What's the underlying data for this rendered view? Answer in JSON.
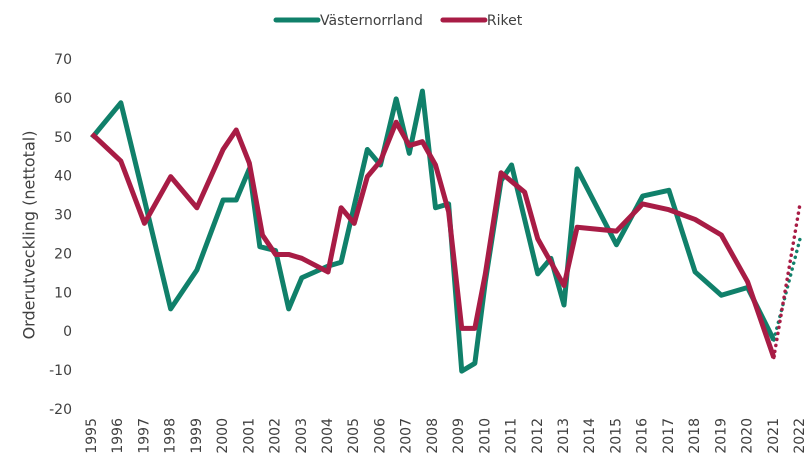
{
  "chart_data": {
    "type": "line",
    "y_axis_label": "Orderutveckling (nettotal)",
    "xlim": [
      1995,
      2022
    ],
    "xticks": [
      1995,
      1996,
      1997,
      1998,
      1999,
      2000,
      2001,
      2002,
      2003,
      2004,
      2005,
      2006,
      2007,
      2008,
      2009,
      2010,
      2011,
      2012,
      2013,
      2014,
      2015,
      2016,
      2017,
      2018,
      2019,
      2020,
      2021,
      2022
    ],
    "ylim": [
      -20,
      70
    ],
    "yticks": [
      -20,
      -10,
      0,
      10,
      20,
      30,
      40,
      50,
      60,
      70
    ],
    "grid": false,
    "legend": "top",
    "series": [
      {
        "name": "Västernorrland",
        "color": "#10806a",
        "x": [
          1995,
          1996.1,
          1997,
          1998,
          1999,
          2000,
          2000.5,
          2001,
          2001.4,
          2002,
          2002.5,
          2003,
          2004,
          2004.5,
          2005.5,
          2006,
          2006.6,
          2007.1,
          2007.6,
          2008.1,
          2008.6,
          2009.1,
          2009.6,
          2010,
          2010.6,
          2011,
          2012,
          2012.5,
          2013,
          2013.5,
          2015,
          2016,
          2017,
          2018,
          2019,
          2020,
          2021
        ],
        "values": [
          50,
          59,
          34,
          6,
          16,
          34,
          34,
          42,
          22,
          21,
          6,
          14,
          17,
          18,
          47,
          43,
          60,
          46,
          62,
          32,
          33,
          -10,
          -8,
          13,
          39,
          43,
          15,
          19,
          7,
          42,
          22.5,
          35,
          36.5,
          15.5,
          9.5,
          11.5,
          -2
        ],
        "forecast_x": [
          2022
        ],
        "forecast_values": [
          24
        ]
      },
      {
        "name": "Riket",
        "color": "#a81c45",
        "x": [
          1995,
          1996.1,
          1997,
          1998,
          1999,
          2000,
          2000.5,
          2001,
          2001.5,
          2002,
          2002.5,
          2003,
          2004,
          2004.5,
          2005,
          2005.5,
          2006,
          2006.6,
          2007.1,
          2007.6,
          2008.1,
          2008.6,
          2009.1,
          2009.6,
          2010,
          2010.6,
          2011.5,
          2012,
          2013,
          2013.5,
          2015,
          2016,
          2017,
          2018,
          2019,
          2020,
          2021
        ],
        "values": [
          51,
          44,
          28,
          40,
          32,
          47,
          52,
          43.5,
          25,
          20,
          20,
          19,
          15.5,
          32,
          28,
          40,
          44,
          54,
          48,
          49,
          43,
          31,
          1,
          1,
          15,
          41,
          36,
          24,
          12,
          27,
          26,
          33,
          31.5,
          29,
          25,
          13,
          -6.5
        ],
        "forecast_x": [
          2022
        ],
        "forecast_values": [
          33
        ]
      }
    ]
  }
}
